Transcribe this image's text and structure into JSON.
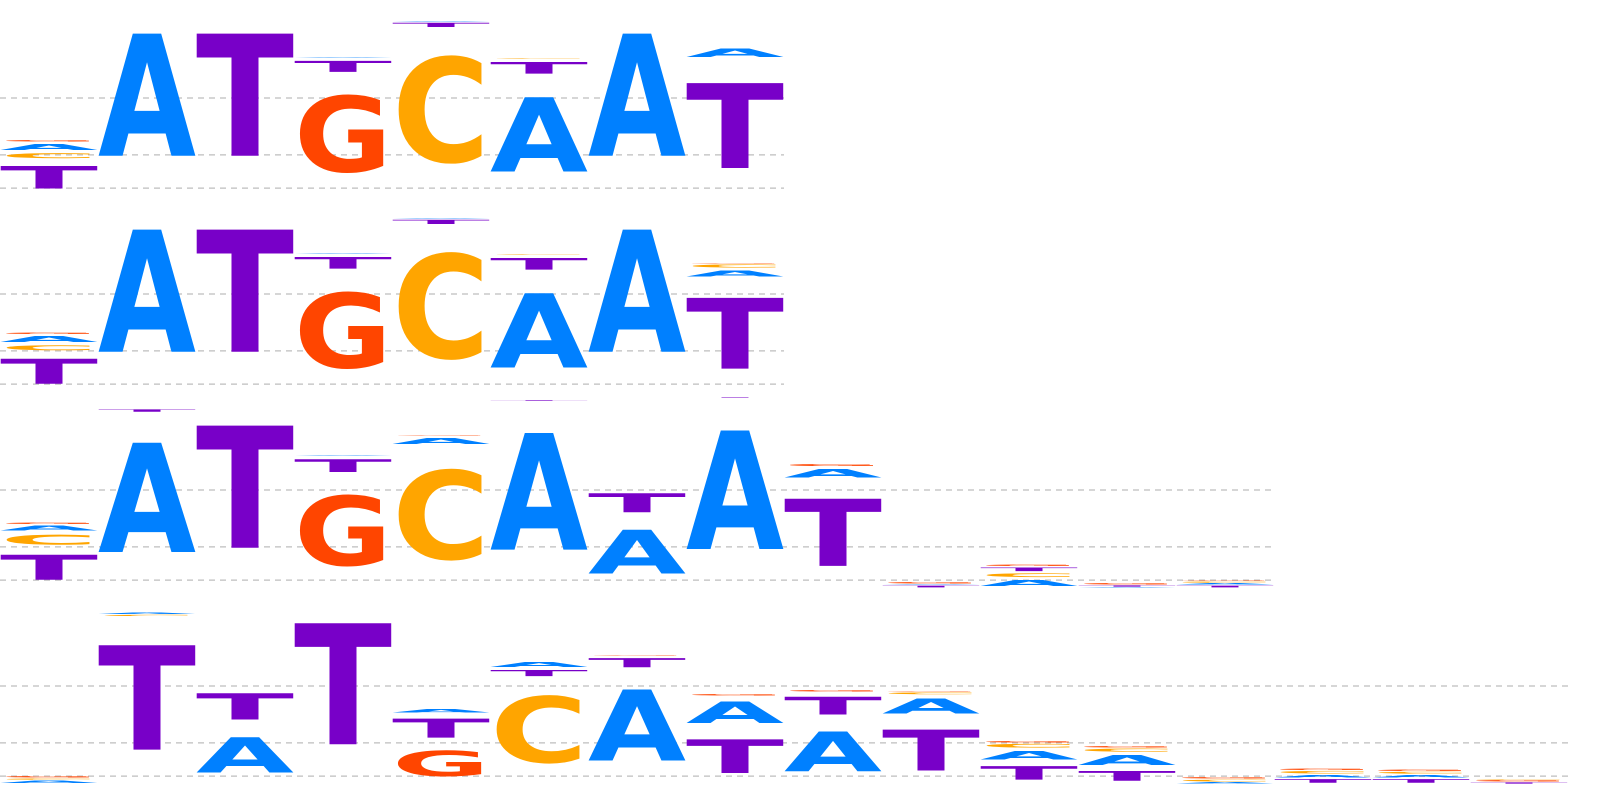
{
  "chart_data": {
    "type": "sequence-logo",
    "units": "bits",
    "ylim": [
      0,
      2
    ],
    "gridlines": [
      0.08,
      0.42,
      1.0
    ],
    "colors": {
      "A": "#0080ff",
      "C": "#ffa500",
      "G": "#ff4500",
      "T": "#7800c8"
    },
    "logos": [
      {
        "columns": [
          [
            [
              "T",
              0.37
            ],
            [
              "C",
              0.08
            ],
            [
              "A",
              0.1
            ],
            [
              "G",
              0.02
            ]
          ],
          [
            [
              "A",
              2.0
            ]
          ],
          [
            [
              "T",
              2.0
            ]
          ],
          [
            [
              "G",
              1.23
            ],
            [
              "T",
              0.18
            ],
            [
              "A",
              0.01
            ]
          ],
          [
            [
              "C",
              1.71
            ],
            [
              "T",
              0.07
            ],
            [
              "A",
              0.01
            ]
          ],
          [
            [
              "A",
              1.21
            ],
            [
              "T",
              0.19
            ],
            [
              "C",
              0.01
            ]
          ],
          [
            [
              "A",
              2.0
            ]
          ],
          [
            [
              "T",
              1.39
            ],
            [
              "A",
              0.14
            ]
          ]
        ]
      },
      {
        "columns": [
          [
            [
              "T",
              0.41
            ],
            [
              "C",
              0.08
            ],
            [
              "A",
              0.1
            ],
            [
              "G",
              0.02
            ]
          ],
          [
            [
              "A",
              2.0
            ]
          ],
          [
            [
              "T",
              2.0
            ]
          ],
          [
            [
              "G",
              1.22
            ],
            [
              "T",
              0.19
            ],
            [
              "A",
              0.01
            ]
          ],
          [
            [
              "C",
              1.7
            ],
            [
              "T",
              0.07
            ],
            [
              "A",
              0.01
            ]
          ],
          [
            [
              "A",
              1.21
            ],
            [
              "T",
              0.19
            ],
            [
              "C",
              0.01
            ]
          ],
          [
            [
              "A",
              2.0
            ]
          ],
          [
            [
              "T",
              1.16
            ],
            [
              "A",
              0.1
            ],
            [
              "C",
              0.05
            ],
            [
              "G",
              0.01
            ]
          ]
        ]
      },
      {
        "columns": [
          [
            [
              "T",
              0.41
            ],
            [
              "C",
              0.16
            ],
            [
              "A",
              0.08
            ],
            [
              "G",
              0.02
            ]
          ],
          [
            [
              "A",
              1.79
            ],
            [
              "T",
              0.04
            ]
          ],
          [
            [
              "T",
              2.0
            ]
          ],
          [
            [
              "G",
              1.14
            ],
            [
              "T",
              0.21
            ],
            [
              "A",
              0.01
            ]
          ],
          [
            [
              "C",
              1.45
            ],
            [
              "A",
              0.1
            ],
            [
              "G",
              0.01
            ]
          ],
          [
            [
              "A",
              1.91
            ],
            [
              "T",
              0.01
            ]
          ],
          [
            [
              "A",
              0.71
            ],
            [
              "T",
              0.31
            ]
          ],
          [
            [
              "A",
              1.94
            ],
            [
              "T",
              0.01
            ]
          ],
          [
            [
              "T",
              1.1
            ],
            [
              "A",
              0.14
            ],
            [
              "G",
              0.03
            ]
          ],
          [
            [
              "T",
              0.03
            ],
            [
              "A",
              0.01
            ],
            [
              "G",
              0.02
            ]
          ],
          [
            [
              "A",
              0.1
            ],
            [
              "C",
              0.06
            ],
            [
              "T",
              0.06
            ],
            [
              "G",
              0.02
            ]
          ],
          [
            [
              "A",
              0.01
            ],
            [
              "T",
              0.02
            ],
            [
              "G",
              0.02
            ]
          ],
          [
            [
              "T",
              0.03
            ],
            [
              "A",
              0.02
            ],
            [
              "C",
              0.02
            ],
            [
              "G",
              0.01
            ]
          ]
        ]
      },
      {
        "columns": [
          [
            [
              "A",
              0.04
            ],
            [
              "C",
              0.02
            ],
            [
              "G",
              0.02
            ]
          ],
          [
            [
              "T",
              1.71
            ],
            [
              "C",
              0.02
            ],
            [
              "A",
              0.02
            ]
          ],
          [
            [
              "A",
              0.57
            ],
            [
              "T",
              0.43
            ]
          ],
          [
            [
              "T",
              1.98
            ]
          ],
          [
            [
              "G",
              0.41
            ],
            [
              "T",
              0.31
            ],
            [
              "A",
              0.05
            ]
          ],
          [
            [
              "C",
              1.08
            ],
            [
              "T",
              0.1
            ],
            [
              "A",
              0.08
            ]
          ],
          [
            [
              "A",
              1.16
            ],
            [
              "T",
              0.15
            ],
            [
              "G",
              0.01
            ]
          ],
          [
            [
              "T",
              0.55
            ],
            [
              "A",
              0.35
            ],
            [
              "G",
              0.02
            ]
          ],
          [
            [
              "A",
              0.65
            ],
            [
              "T",
              0.29
            ],
            [
              "G",
              0.02
            ]
          ],
          [
            [
              "T",
              0.67
            ],
            [
              "A",
              0.24
            ],
            [
              "C",
              0.03
            ],
            [
              "G",
              0.01
            ]
          ],
          [
            [
              "T",
              0.22
            ],
            [
              "A",
              0.14
            ],
            [
              "C",
              0.06
            ],
            [
              "G",
              0.02
            ]
          ],
          [
            [
              "T",
              0.16
            ],
            [
              "A",
              0.16
            ],
            [
              "C",
              0.05
            ],
            [
              "G",
              0.02
            ]
          ],
          [
            [
              "A",
              0.02
            ],
            [
              "C",
              0.03
            ],
            [
              "G",
              0.02
            ]
          ],
          [
            [
              "T",
              0.06
            ],
            [
              "A",
              0.04
            ],
            [
              "C",
              0.04
            ],
            [
              "G",
              0.02
            ]
          ],
          [
            [
              "T",
              0.06
            ],
            [
              "A",
              0.04
            ],
            [
              "C",
              0.03
            ],
            [
              "G",
              0.02
            ]
          ],
          [
            [
              "T",
              0.02
            ],
            [
              "G",
              0.02
            ],
            [
              "C",
              0.01
            ]
          ]
        ]
      }
    ]
  }
}
